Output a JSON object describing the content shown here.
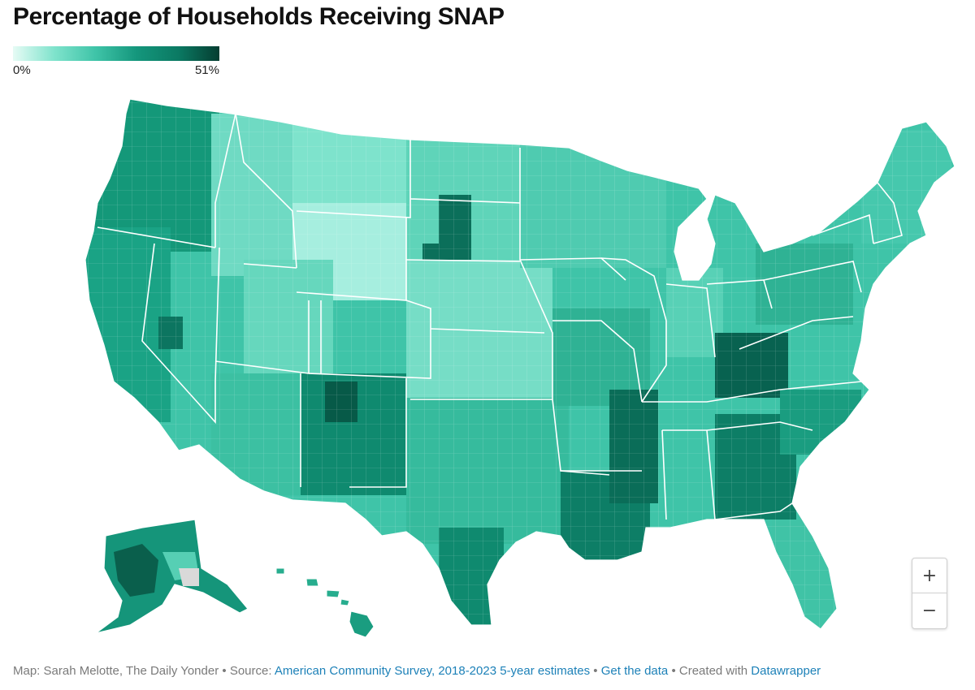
{
  "title": "Percentage of Households Receiving SNAP",
  "legend": {
    "min_label": "0%",
    "max_label": "51%",
    "colors": [
      "#e6fbf5",
      "#7fe3cc",
      "#3fc4a8",
      "#14967c",
      "#0b7a63",
      "#053d31"
    ]
  },
  "map": {
    "region": "United States counties",
    "missing_color": "#d9d9d9"
  },
  "zoom": {
    "in_label": "+",
    "out_label": "−"
  },
  "footer": {
    "credit": "Map: Sarah Melotte, The Daily Yonder",
    "source_prefix": "Source:",
    "source_link": "American Community Survey, 2018-2023 5-year estimates",
    "data_link": "Get the data",
    "created_prefix": "Created with",
    "created_link": "Datawrapper",
    "separator": "•"
  }
}
